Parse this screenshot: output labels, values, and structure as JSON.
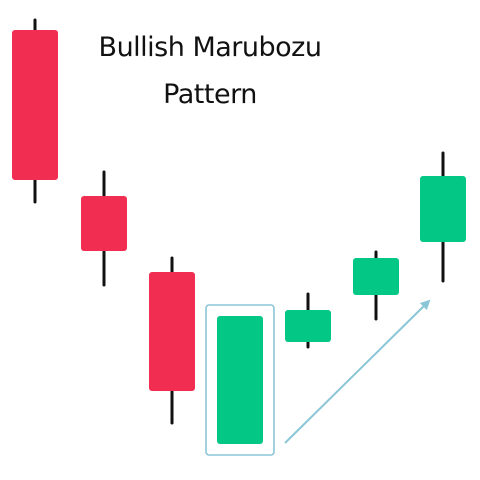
{
  "chart_data": {
    "type": "candlestick",
    "title_lines": [
      "Bullish Marubozu",
      "Pattern"
    ],
    "colors": {
      "bearish": "#f22d52",
      "bullish": "#02c785",
      "wick": "#111111",
      "highlight": "#8ac6d6",
      "arrow": "#8ac6d6"
    },
    "candles": [
      {
        "open": 450,
        "close": 300,
        "high": 460,
        "low": 278,
        "direction": "bearish"
      },
      {
        "open": 284,
        "close": 229,
        "high": 308,
        "low": 195,
        "direction": "bearish"
      },
      {
        "open": 208,
        "close": 89,
        "high": 222,
        "low": 57,
        "direction": "bearish"
      },
      {
        "open": 36,
        "close": 164,
        "high": 164,
        "low": 36,
        "direction": "bullish",
        "highlighted": true
      },
      {
        "open": 138,
        "close": 170,
        "high": 186,
        "low": 133,
        "direction": "bullish"
      },
      {
        "open": 185,
        "close": 222,
        "high": 228,
        "low": 161,
        "direction": "bullish"
      },
      {
        "open": 238,
        "close": 304,
        "high": 327,
        "low": 199,
        "direction": "bullish"
      }
    ],
    "trend_arrow": {
      "from_candle": 3,
      "to_candle": 6,
      "direction": "up"
    }
  }
}
